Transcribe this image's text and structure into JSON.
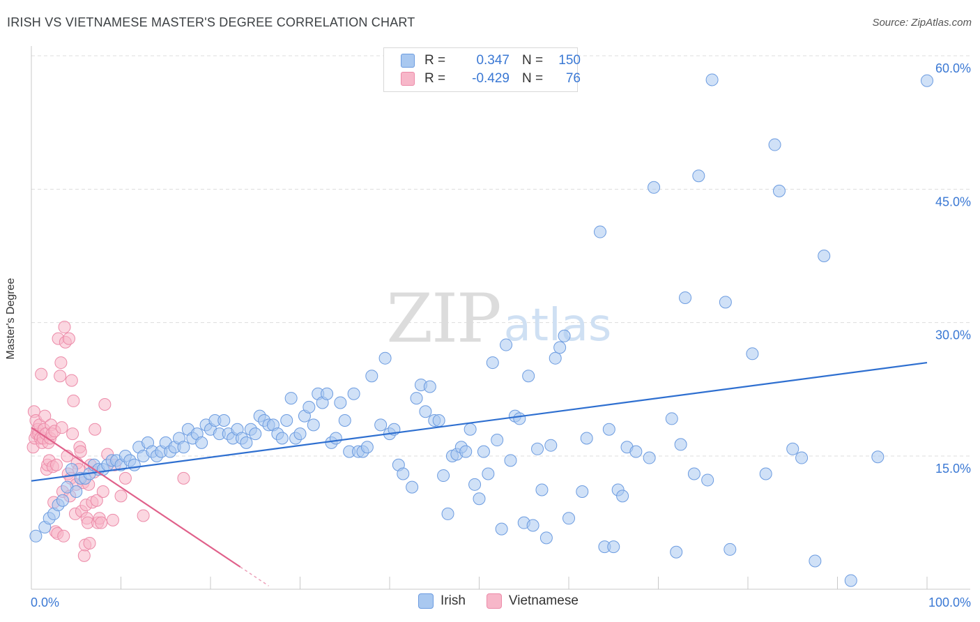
{
  "header": {
    "title": "IRISH VS VIETNAMESE MASTER'S DEGREE CORRELATION CHART",
    "source": "Source: ZipAtlas.com"
  },
  "legend": {
    "irish": {
      "r_label": "R =",
      "r_value": "0.347",
      "n_label": "N =",
      "n_value": "150"
    },
    "vietnamese": {
      "r_label": "R =",
      "r_value": "-0.429",
      "n_label": "N =",
      "n_value": "76"
    }
  },
  "bottom_legend": {
    "irish": "Irish",
    "vietnamese": "Vietnamese"
  },
  "watermark": {
    "zip": "ZIP",
    "atlas": "atlas"
  },
  "colors": {
    "irish_fill": "#a9c8f0",
    "irish_stroke": "#6b9be0",
    "irish_line": "#2e6fd0",
    "viet_fill": "#f7b7c9",
    "viet_stroke": "#ec8aa8",
    "viet_line": "#e0608a",
    "tick_label": "#3a78d4",
    "grid": "#dddddd"
  },
  "chart_data": {
    "type": "scatter",
    "title": "IRISH VS VIETNAMESE MASTER'S DEGREE CORRELATION CHART",
    "xlabel": "",
    "ylabel": "Master's Degree",
    "xlim": [
      0,
      100
    ],
    "ylim": [
      0,
      63
    ],
    "x_tick_labels": [
      "0.0%",
      "100.0%"
    ],
    "y_ticks": [
      15,
      30,
      45,
      60
    ],
    "y_tick_labels": [
      "15.0%",
      "30.0%",
      "45.0%",
      "60.0%"
    ],
    "grid": true,
    "legend_position": "top-center",
    "series": [
      {
        "name": "Irish",
        "r": 0.347,
        "n": 150,
        "trend": {
          "x": [
            0,
            100
          ],
          "y": [
            12.2,
            25.5
          ]
        },
        "points": [
          [
            0.5,
            6.0
          ],
          [
            1.5,
            7.0
          ],
          [
            2.0,
            8.0
          ],
          [
            2.5,
            8.5
          ],
          [
            3.0,
            9.5
          ],
          [
            3.5,
            10.0
          ],
          [
            4.0,
            11.5
          ],
          [
            4.5,
            13.5
          ],
          [
            5.0,
            11.0
          ],
          [
            5.5,
            12.5
          ],
          [
            6.0,
            12.5
          ],
          [
            6.5,
            13.0
          ],
          [
            7.0,
            14.0
          ],
          [
            7.5,
            13.5
          ],
          [
            8.0,
            13.5
          ],
          [
            8.5,
            14.0
          ],
          [
            9.0,
            14.5
          ],
          [
            9.5,
            14.5
          ],
          [
            10.0,
            14.0
          ],
          [
            10.5,
            15.0
          ],
          [
            11.0,
            14.5
          ],
          [
            11.5,
            14.0
          ],
          [
            12.0,
            16.0
          ],
          [
            12.5,
            15.0
          ],
          [
            13.0,
            16.5
          ],
          [
            13.5,
            15.5
          ],
          [
            14.0,
            15.0
          ],
          [
            14.5,
            15.5
          ],
          [
            15.0,
            16.5
          ],
          [
            15.5,
            15.5
          ],
          [
            16.0,
            16.0
          ],
          [
            16.5,
            17.0
          ],
          [
            17.0,
            16.0
          ],
          [
            17.5,
            18.0
          ],
          [
            18.0,
            17.0
          ],
          [
            18.5,
            17.5
          ],
          [
            19.0,
            16.5
          ],
          [
            19.5,
            18.5
          ],
          [
            20.0,
            18.0
          ],
          [
            20.5,
            19.0
          ],
          [
            21.0,
            17.5
          ],
          [
            21.5,
            19.0
          ],
          [
            22.0,
            17.5
          ],
          [
            22.5,
            17.0
          ],
          [
            23.0,
            18.0
          ],
          [
            23.5,
            17.0
          ],
          [
            24.0,
            16.5
          ],
          [
            24.5,
            18.0
          ],
          [
            25.0,
            17.5
          ],
          [
            25.5,
            19.5
          ],
          [
            26.0,
            19.0
          ],
          [
            26.5,
            18.5
          ],
          [
            27.0,
            18.5
          ],
          [
            27.5,
            17.5
          ],
          [
            28.0,
            17.0
          ],
          [
            28.5,
            19.0
          ],
          [
            29.0,
            21.5
          ],
          [
            29.5,
            17.0
          ],
          [
            30.0,
            17.5
          ],
          [
            30.5,
            19.5
          ],
          [
            31.0,
            20.5
          ],
          [
            31.5,
            18.5
          ],
          [
            32.0,
            22.0
          ],
          [
            32.5,
            21.0
          ],
          [
            33.0,
            22.0
          ],
          [
            33.5,
            16.5
          ],
          [
            34.0,
            17.0
          ],
          [
            34.5,
            21.0
          ],
          [
            35.0,
            19.0
          ],
          [
            35.5,
            15.5
          ],
          [
            36.0,
            22.0
          ],
          [
            36.5,
            15.5
          ],
          [
            37.0,
            15.5
          ],
          [
            37.5,
            16.0
          ],
          [
            38.0,
            24.0
          ],
          [
            39.0,
            18.5
          ],
          [
            39.5,
            26.0
          ],
          [
            40.0,
            17.5
          ],
          [
            40.5,
            18.0
          ],
          [
            41.0,
            14.0
          ],
          [
            41.5,
            13.0
          ],
          [
            42.5,
            11.5
          ],
          [
            43.0,
            21.5
          ],
          [
            43.5,
            23.0
          ],
          [
            44.0,
            20.0
          ],
          [
            44.5,
            22.8
          ],
          [
            45.0,
            19.0
          ],
          [
            45.5,
            19.0
          ],
          [
            46.0,
            12.8
          ],
          [
            46.5,
            8.5
          ],
          [
            47.0,
            15.0
          ],
          [
            47.5,
            15.2
          ],
          [
            48.0,
            16.0
          ],
          [
            48.5,
            15.5
          ],
          [
            49.0,
            18.0
          ],
          [
            49.5,
            11.8
          ],
          [
            50.0,
            10.2
          ],
          [
            50.5,
            15.5
          ],
          [
            51.0,
            13.0
          ],
          [
            51.5,
            25.5
          ],
          [
            52.0,
            16.8
          ],
          [
            52.5,
            6.8
          ],
          [
            53.0,
            27.5
          ],
          [
            53.5,
            14.5
          ],
          [
            54.0,
            19.5
          ],
          [
            54.5,
            19.2
          ],
          [
            55.0,
            7.5
          ],
          [
            55.5,
            24.0
          ],
          [
            56.0,
            7.2
          ],
          [
            56.5,
            15.8
          ],
          [
            57.0,
            11.2
          ],
          [
            57.5,
            5.8
          ],
          [
            58.0,
            16.2
          ],
          [
            58.5,
            26.0
          ],
          [
            59.0,
            27.2
          ],
          [
            59.5,
            28.5
          ],
          [
            60.0,
            8.0
          ],
          [
            61.5,
            11.0
          ],
          [
            62.0,
            17.0
          ],
          [
            63.5,
            40.2
          ],
          [
            64.0,
            4.8
          ],
          [
            64.5,
            18.0
          ],
          [
            65.0,
            4.8
          ],
          [
            65.5,
            11.2
          ],
          [
            66.0,
            10.5
          ],
          [
            66.5,
            16.0
          ],
          [
            67.5,
            15.5
          ],
          [
            69.0,
            14.8
          ],
          [
            69.5,
            45.2
          ],
          [
            71.5,
            19.2
          ],
          [
            72.0,
            4.2
          ],
          [
            72.5,
            16.3
          ],
          [
            73.0,
            32.8
          ],
          [
            74.0,
            13.0
          ],
          [
            74.5,
            46.5
          ],
          [
            75.5,
            12.3
          ],
          [
            76.0,
            57.3
          ],
          [
            77.5,
            32.3
          ],
          [
            78.0,
            4.5
          ],
          [
            80.5,
            26.5
          ],
          [
            82.0,
            13.0
          ],
          [
            83.0,
            50.0
          ],
          [
            83.5,
            44.8
          ],
          [
            85.0,
            15.8
          ],
          [
            86.0,
            14.8
          ],
          [
            87.5,
            3.2
          ],
          [
            88.5,
            37.5
          ],
          [
            91.5,
            1.0
          ],
          [
            94.5,
            14.9
          ],
          [
            100.0,
            57.2
          ]
        ]
      },
      {
        "name": "Vietnamese",
        "r": -0.429,
        "n": 76,
        "trend": {
          "x": [
            0,
            26.5
          ],
          "y": [
            18.2,
            0.4
          ]
        },
        "points": [
          [
            0.2,
            16.0
          ],
          [
            0.3,
            20.0
          ],
          [
            0.4,
            17.0
          ],
          [
            0.5,
            19.0
          ],
          [
            0.6,
            17.5
          ],
          [
            0.7,
            18.0
          ],
          [
            0.8,
            17.5
          ],
          [
            0.9,
            18.5
          ],
          [
            1.0,
            17.0
          ],
          [
            1.1,
            24.2
          ],
          [
            1.2,
            16.5
          ],
          [
            1.3,
            17.0
          ],
          [
            1.4,
            18.0
          ],
          [
            1.5,
            19.5
          ],
          [
            1.6,
            17.5
          ],
          [
            1.7,
            13.5
          ],
          [
            1.8,
            14.0
          ],
          [
            1.9,
            16.5
          ],
          [
            2.0,
            14.5
          ],
          [
            2.1,
            17.0
          ],
          [
            2.2,
            18.5
          ],
          [
            2.3,
            17.5
          ],
          [
            2.4,
            13.8
          ],
          [
            2.5,
            9.8
          ],
          [
            2.6,
            17.8
          ],
          [
            2.7,
            6.5
          ],
          [
            2.8,
            14.0
          ],
          [
            2.9,
            6.3
          ],
          [
            3.0,
            28.2
          ],
          [
            3.2,
            24.0
          ],
          [
            3.3,
            25.5
          ],
          [
            3.4,
            18.2
          ],
          [
            3.5,
            11.0
          ],
          [
            3.6,
            6.0
          ],
          [
            3.7,
            29.5
          ],
          [
            3.8,
            27.8
          ],
          [
            4.0,
            15.0
          ],
          [
            4.1,
            13.0
          ],
          [
            4.2,
            28.2
          ],
          [
            4.3,
            10.5
          ],
          [
            4.4,
            12.5
          ],
          [
            4.5,
            23.5
          ],
          [
            4.6,
            17.5
          ],
          [
            4.7,
            21.2
          ],
          [
            4.9,
            8.5
          ],
          [
            5.0,
            11.8
          ],
          [
            5.1,
            14.2
          ],
          [
            5.3,
            13.5
          ],
          [
            5.4,
            16.0
          ],
          [
            5.5,
            15.5
          ],
          [
            5.6,
            8.8
          ],
          [
            5.8,
            12.0
          ],
          [
            5.9,
            3.8
          ],
          [
            6.0,
            5.0
          ],
          [
            6.1,
            9.5
          ],
          [
            6.2,
            8.0
          ],
          [
            6.3,
            7.5
          ],
          [
            6.4,
            11.8
          ],
          [
            6.5,
            5.2
          ],
          [
            6.6,
            14.0
          ],
          [
            6.8,
            9.8
          ],
          [
            7.0,
            13.2
          ],
          [
            7.1,
            18.0
          ],
          [
            7.3,
            10.0
          ],
          [
            7.4,
            7.5
          ],
          [
            7.6,
            8.0
          ],
          [
            7.8,
            7.5
          ],
          [
            8.0,
            11.0
          ],
          [
            8.2,
            20.8
          ],
          [
            8.5,
            15.2
          ],
          [
            9.1,
            7.8
          ],
          [
            9.3,
            14.0
          ],
          [
            10.0,
            10.5
          ],
          [
            10.5,
            12.5
          ],
          [
            12.5,
            8.3
          ],
          [
            17.0,
            12.5
          ]
        ]
      }
    ]
  }
}
